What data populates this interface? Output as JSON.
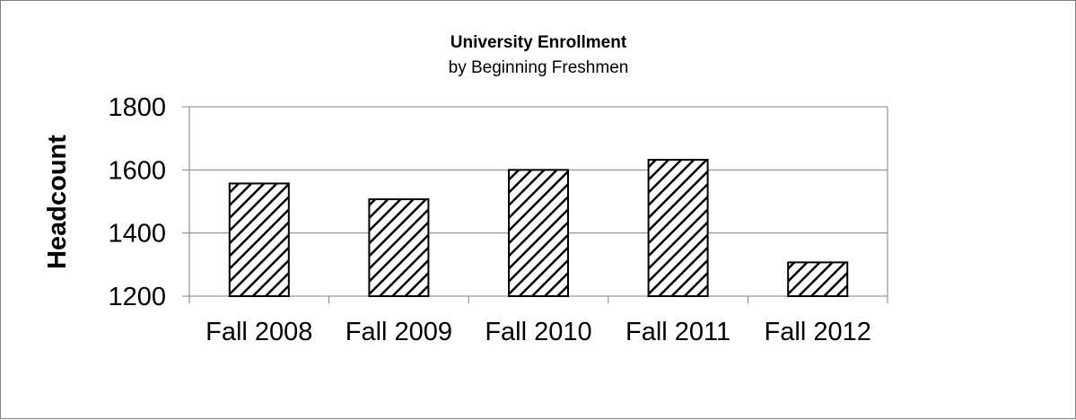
{
  "chart_data": {
    "type": "bar",
    "title": "University Enrollment",
    "subtitle": "by Beginning Freshmen",
    "xlabel": "",
    "ylabel": "Headcount",
    "categories": [
      "Fall 2008",
      "Fall 2009",
      "Fall 2010",
      "Fall 2011",
      "Fall 2012"
    ],
    "values": [
      1557,
      1507,
      1600,
      1632,
      1307
    ],
    "ylim": [
      1200,
      1800
    ],
    "yticks": [
      "1200",
      "1400",
      "1600",
      "1800"
    ],
    "grid": true,
    "legend": "none",
    "bar_pattern": "diagonal-hatch",
    "colors": {
      "bar_stroke": "#000000",
      "grid": "#808080",
      "background": "#ffffff"
    }
  }
}
